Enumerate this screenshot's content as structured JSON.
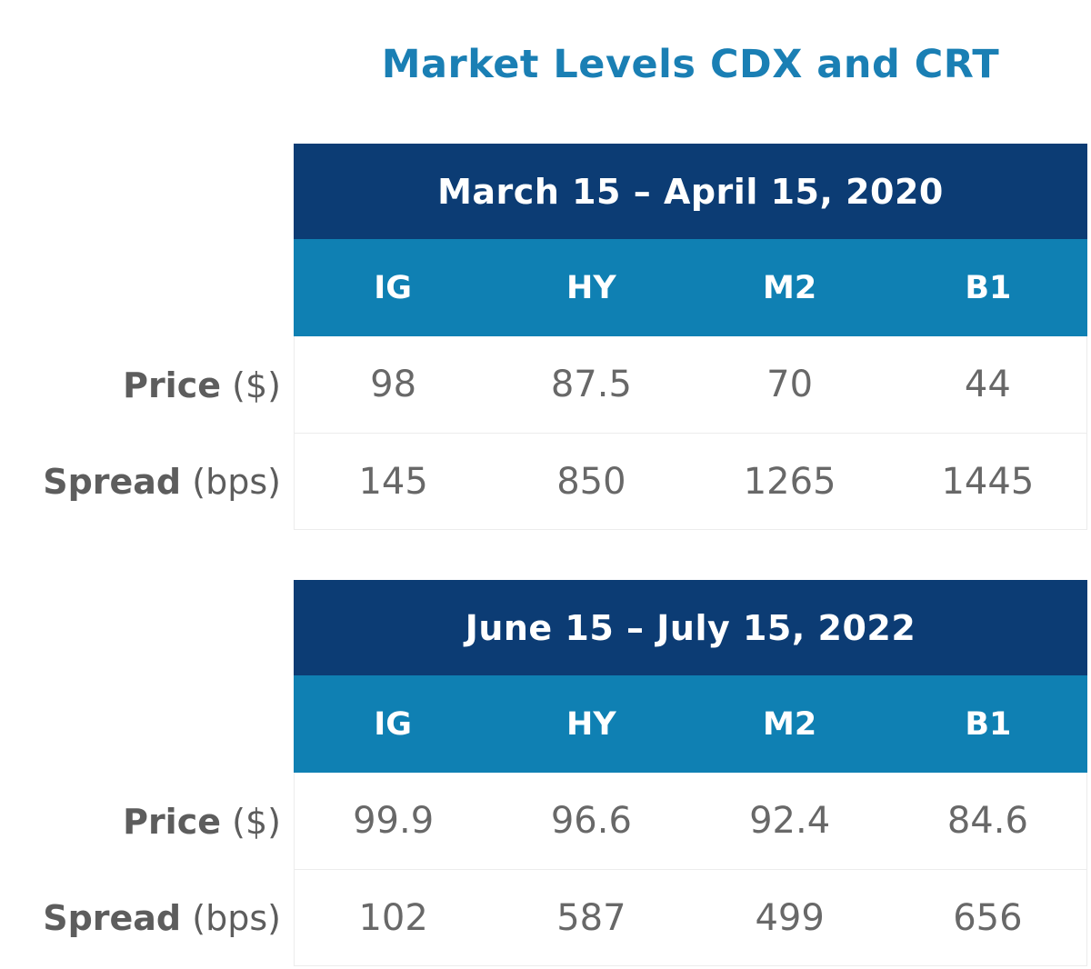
{
  "title": "Market Levels CDX and CRT",
  "columns": [
    "IG",
    "HY",
    "M2",
    "B1"
  ],
  "labels": {
    "price_name": "Price",
    "price_unit": "($)",
    "spread_name": "Spread",
    "spread_unit": "(bps)"
  },
  "tables": [
    {
      "period": "March 15 – April 15, 2020",
      "price": [
        "98",
        "87.5",
        "70",
        "44"
      ],
      "spread": [
        "145",
        "850",
        "1265",
        "1445"
      ]
    },
    {
      "period": "June 15 – July 15, 2022",
      "price": [
        "99.9",
        "96.6",
        "92.4",
        "84.6"
      ],
      "spread": [
        "102",
        "587",
        "499",
        "656"
      ]
    }
  ],
  "colors": {
    "title_blue": "#1a7fb4",
    "header_navy": "#0c3c74",
    "header_blue": "#0f80b3",
    "label_gray": "#5d5d5d",
    "value_gray": "#686868",
    "cell_border": "#ececec",
    "background": "#ffffff"
  },
  "chart_data": [
    {
      "type": "table",
      "title": "March 15 – April 15, 2020",
      "columns": [
        "IG",
        "HY",
        "M2",
        "B1"
      ],
      "rows": [
        {
          "label": "Price ($)",
          "values": [
            98,
            87.5,
            70,
            44
          ]
        },
        {
          "label": "Spread (bps)",
          "values": [
            145,
            850,
            1265,
            1445
          ]
        }
      ]
    },
    {
      "type": "table",
      "title": "June 15 – July 15, 2022",
      "columns": [
        "IG",
        "HY",
        "M2",
        "B1"
      ],
      "rows": [
        {
          "label": "Price ($)",
          "values": [
            99.9,
            96.6,
            92.4,
            84.6
          ]
        },
        {
          "label": "Spread (bps)",
          "values": [
            102,
            587,
            499,
            656
          ]
        }
      ]
    }
  ]
}
